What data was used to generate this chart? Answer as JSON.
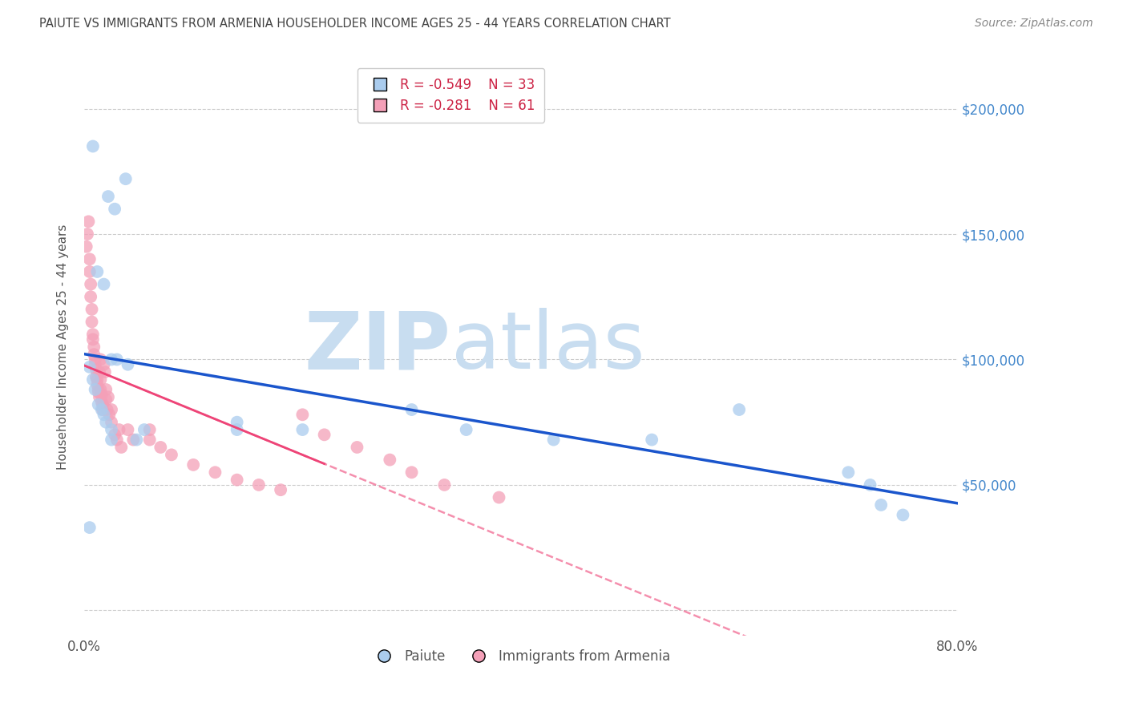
{
  "title": "PAIUTE VS IMMIGRANTS FROM ARMENIA HOUSEHOLDER INCOME AGES 25 - 44 YEARS CORRELATION CHART",
  "source": "Source: ZipAtlas.com",
  "ylabel": "Householder Income Ages 25 - 44 years",
  "xlim": [
    0.0,
    0.8
  ],
  "ylim": [
    -10000,
    220000
  ],
  "ytick_values": [
    0,
    50000,
    100000,
    150000,
    200000
  ],
  "ytick_labels": [
    "",
    "$50,000",
    "$100,000",
    "$150,000",
    "$200,000"
  ],
  "grid_color": "#cccccc",
  "bg_color": "#ffffff",
  "paiute_color": "#aaccee",
  "armenia_color": "#f4a0b8",
  "paiute_line_color": "#1a55cc",
  "armenia_line_color": "#ee4477",
  "armenia_line_dash_color": "#f4a0b8",
  "legend_R1": "-0.549",
  "legend_N1": "33",
  "legend_R2": "-0.281",
  "legend_N2": "61",
  "watermark_zip": "ZIP",
  "watermark_atlas": "atlas",
  "watermark_color": "#c8ddf0",
  "paiute_x": [
    0.008,
    0.022,
    0.028,
    0.038,
    0.012,
    0.018,
    0.025,
    0.03,
    0.005,
    0.008,
    0.01,
    0.013,
    0.016,
    0.018,
    0.02,
    0.025,
    0.025,
    0.04,
    0.048,
    0.055,
    0.14,
    0.14,
    0.2,
    0.3,
    0.35,
    0.43,
    0.52,
    0.6,
    0.7,
    0.72,
    0.73,
    0.75,
    0.005
  ],
  "paiute_y": [
    185000,
    165000,
    160000,
    172000,
    135000,
    130000,
    100000,
    100000,
    97000,
    92000,
    88000,
    82000,
    80000,
    78000,
    75000,
    72000,
    68000,
    98000,
    68000,
    72000,
    75000,
    72000,
    72000,
    80000,
    72000,
    68000,
    68000,
    80000,
    55000,
    50000,
    42000,
    38000,
    33000
  ],
  "armenia_x": [
    0.002,
    0.003,
    0.004,
    0.005,
    0.005,
    0.006,
    0.006,
    0.007,
    0.007,
    0.008,
    0.008,
    0.009,
    0.009,
    0.01,
    0.01,
    0.011,
    0.011,
    0.012,
    0.012,
    0.013,
    0.013,
    0.014,
    0.014,
    0.015,
    0.015,
    0.015,
    0.016,
    0.016,
    0.017,
    0.017,
    0.018,
    0.019,
    0.02,
    0.02,
    0.021,
    0.022,
    0.023,
    0.025,
    0.025,
    0.028,
    0.03,
    0.032,
    0.034,
    0.04,
    0.045,
    0.06,
    0.06,
    0.07,
    0.08,
    0.1,
    0.12,
    0.14,
    0.16,
    0.18,
    0.2,
    0.22,
    0.25,
    0.28,
    0.3,
    0.33,
    0.38
  ],
  "armenia_y": [
    145000,
    150000,
    155000,
    140000,
    135000,
    130000,
    125000,
    120000,
    115000,
    110000,
    108000,
    105000,
    102000,
    100000,
    98000,
    96000,
    93000,
    92000,
    90000,
    88000,
    87000,
    85000,
    95000,
    100000,
    92000,
    88000,
    86000,
    83000,
    82000,
    80000,
    98000,
    95000,
    88000,
    84000,
    80000,
    85000,
    78000,
    80000,
    75000,
    70000,
    68000,
    72000,
    65000,
    72000,
    68000,
    72000,
    68000,
    65000,
    62000,
    58000,
    55000,
    52000,
    50000,
    48000,
    78000,
    70000,
    65000,
    60000,
    55000,
    50000,
    45000
  ]
}
